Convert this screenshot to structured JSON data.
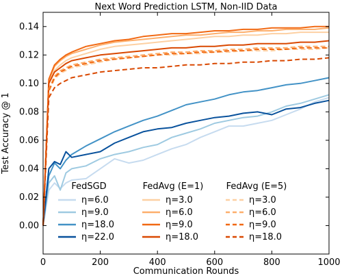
{
  "chart_data": {
    "type": "line",
    "title": "Next Word Prediction LSTM, Non-IID Data",
    "xlabel": "Communication Rounds",
    "ylabel": "Test Accuracy @ 1",
    "xlim": [
      0,
      1000
    ],
    "ylim": [
      -0.02,
      0.15
    ],
    "xticks": [
      0,
      200,
      400,
      600,
      800,
      1000
    ],
    "yticks": [
      0.0,
      0.02,
      0.04,
      0.06,
      0.08,
      0.1,
      0.12,
      0.14
    ],
    "xtick_labels": [
      "0",
      "200",
      "400",
      "600",
      "800",
      "1000"
    ],
    "ytick_labels": [
      "0.00",
      "0.02",
      "0.04",
      "0.06",
      "0.08",
      "0.10",
      "0.12",
      "0.14"
    ],
    "grid": false,
    "legend_placement": "bottom",
    "legend_groups": [
      {
        "title": "FedSGD",
        "entries": [
          "η=6.0",
          "η=9.0",
          "η=18.0",
          "η=22.0"
        ]
      },
      {
        "title": "FedAvg (E=1)",
        "entries": [
          "η=3.0",
          "η=6.0",
          "η=9.0",
          "η=18.0"
        ]
      },
      {
        "title": "FedAvg (E=5)",
        "entries": [
          "η=3.0",
          "η=6.0",
          "η=9.0",
          "η=18.0"
        ]
      }
    ],
    "x": [
      0,
      20,
      40,
      60,
      80,
      100,
      150,
      200,
      250,
      300,
      350,
      400,
      450,
      500,
      550,
      600,
      650,
      700,
      750,
      800,
      850,
      900,
      950,
      1000
    ],
    "series": [
      {
        "name": "η=6.0",
        "group": "FedSGD",
        "color": "#c6dbef",
        "dash": "solid",
        "values": [
          0.0,
          0.025,
          0.03,
          0.026,
          0.03,
          0.032,
          0.033,
          0.04,
          0.047,
          0.044,
          0.046,
          0.05,
          0.054,
          0.057,
          0.062,
          0.066,
          0.07,
          0.07,
          0.072,
          0.074,
          0.078,
          0.082,
          0.087,
          0.09
        ]
      },
      {
        "name": "η=9.0",
        "group": "FedSGD",
        "color": "#9ecae1",
        "dash": "solid",
        "values": [
          0.0,
          0.03,
          0.035,
          0.025,
          0.037,
          0.04,
          0.042,
          0.047,
          0.05,
          0.052,
          0.055,
          0.057,
          0.062,
          0.065,
          0.068,
          0.072,
          0.074,
          0.076,
          0.077,
          0.08,
          0.084,
          0.086,
          0.089,
          0.092
        ]
      },
      {
        "name": "η=18.0",
        "group": "FedSGD",
        "color": "#4292c6",
        "dash": "solid",
        "values": [
          0.0,
          0.035,
          0.044,
          0.04,
          0.046,
          0.05,
          0.056,
          0.061,
          0.066,
          0.07,
          0.074,
          0.077,
          0.081,
          0.085,
          0.087,
          0.089,
          0.092,
          0.094,
          0.095,
          0.097,
          0.099,
          0.1,
          0.102,
          0.104
        ]
      },
      {
        "name": "η=22.0",
        "group": "FedSGD",
        "color": "#08519c",
        "dash": "solid",
        "values": [
          0.0,
          0.04,
          0.045,
          0.043,
          0.052,
          0.048,
          0.05,
          0.052,
          0.058,
          0.062,
          0.066,
          0.068,
          0.069,
          0.072,
          0.074,
          0.076,
          0.077,
          0.079,
          0.08,
          0.078,
          0.082,
          0.083,
          0.086,
          0.088
        ]
      },
      {
        "name": "η=3.0",
        "group": "FedAvg (E=1)",
        "color": "#fdd0a2",
        "dash": "solid",
        "values": [
          0.0,
          0.1,
          0.109,
          0.113,
          0.116,
          0.118,
          0.121,
          0.124,
          0.126,
          0.127,
          0.128,
          0.129,
          0.13,
          0.131,
          0.132,
          0.133,
          0.133,
          0.134,
          0.134,
          0.135,
          0.135,
          0.136,
          0.136,
          0.136
        ]
      },
      {
        "name": "η=6.0",
        "group": "FedAvg (E=1)",
        "color": "#fdae6b",
        "dash": "solid",
        "values": [
          0.0,
          0.102,
          0.112,
          0.116,
          0.119,
          0.121,
          0.124,
          0.127,
          0.129,
          0.13,
          0.131,
          0.132,
          0.133,
          0.134,
          0.134,
          0.135,
          0.136,
          0.136,
          0.137,
          0.137,
          0.138,
          0.138,
          0.138,
          0.139
        ]
      },
      {
        "name": "η=9.0",
        "group": "FedAvg (E=1)",
        "color": "#f16913",
        "dash": "solid",
        "values": [
          0.0,
          0.103,
          0.113,
          0.117,
          0.12,
          0.122,
          0.126,
          0.128,
          0.13,
          0.131,
          0.133,
          0.134,
          0.135,
          0.135,
          0.136,
          0.137,
          0.137,
          0.138,
          0.138,
          0.139,
          0.139,
          0.139,
          0.14,
          0.14
        ]
      },
      {
        "name": "η=18.0",
        "group": "FedAvg (E=1)",
        "color": "#d94801",
        "dash": "solid",
        "values": [
          0.0,
          0.1,
          0.108,
          0.111,
          0.114,
          0.116,
          0.118,
          0.12,
          0.121,
          0.122,
          0.123,
          0.124,
          0.125,
          0.125,
          0.126,
          0.126,
          0.127,
          0.127,
          0.128,
          0.128,
          0.128,
          0.129,
          0.129,
          0.13
        ]
      },
      {
        "name": "η=3.0",
        "group": "FedAvg (E=5)",
        "color": "#fdd0a2",
        "dash": "dashed",
        "values": [
          0.0,
          0.094,
          0.103,
          0.107,
          0.109,
          0.111,
          0.113,
          0.115,
          0.117,
          0.118,
          0.119,
          0.12,
          0.12,
          0.121,
          0.121,
          0.122,
          0.122,
          0.123,
          0.123,
          0.123,
          0.124,
          0.124,
          0.124,
          0.125
        ]
      },
      {
        "name": "η=6.0",
        "group": "FedAvg (E=5)",
        "color": "#fdae6b",
        "dash": "dashed",
        "values": [
          0.0,
          0.096,
          0.105,
          0.109,
          0.111,
          0.113,
          0.115,
          0.117,
          0.118,
          0.119,
          0.12,
          0.121,
          0.122,
          0.122,
          0.123,
          0.123,
          0.124,
          0.124,
          0.125,
          0.125,
          0.125,
          0.126,
          0.126,
          0.126
        ]
      },
      {
        "name": "η=9.0",
        "group": "FedAvg (E=5)",
        "color": "#f16913",
        "dash": "dashed",
        "values": [
          0.0,
          0.095,
          0.104,
          0.108,
          0.11,
          0.112,
          0.114,
          0.116,
          0.117,
          0.118,
          0.119,
          0.12,
          0.121,
          0.121,
          0.122,
          0.122,
          0.123,
          0.123,
          0.124,
          0.124,
          0.124,
          0.125,
          0.125,
          0.125
        ]
      },
      {
        "name": "η=18.0",
        "group": "FedAvg (E=5)",
        "color": "#d94801",
        "dash": "dashed",
        "values": [
          0.0,
          0.09,
          0.097,
          0.1,
          0.102,
          0.104,
          0.106,
          0.108,
          0.109,
          0.11,
          0.111,
          0.111,
          0.112,
          0.113,
          0.113,
          0.114,
          0.114,
          0.115,
          0.115,
          0.116,
          0.116,
          0.117,
          0.117,
          0.118
        ]
      }
    ]
  }
}
